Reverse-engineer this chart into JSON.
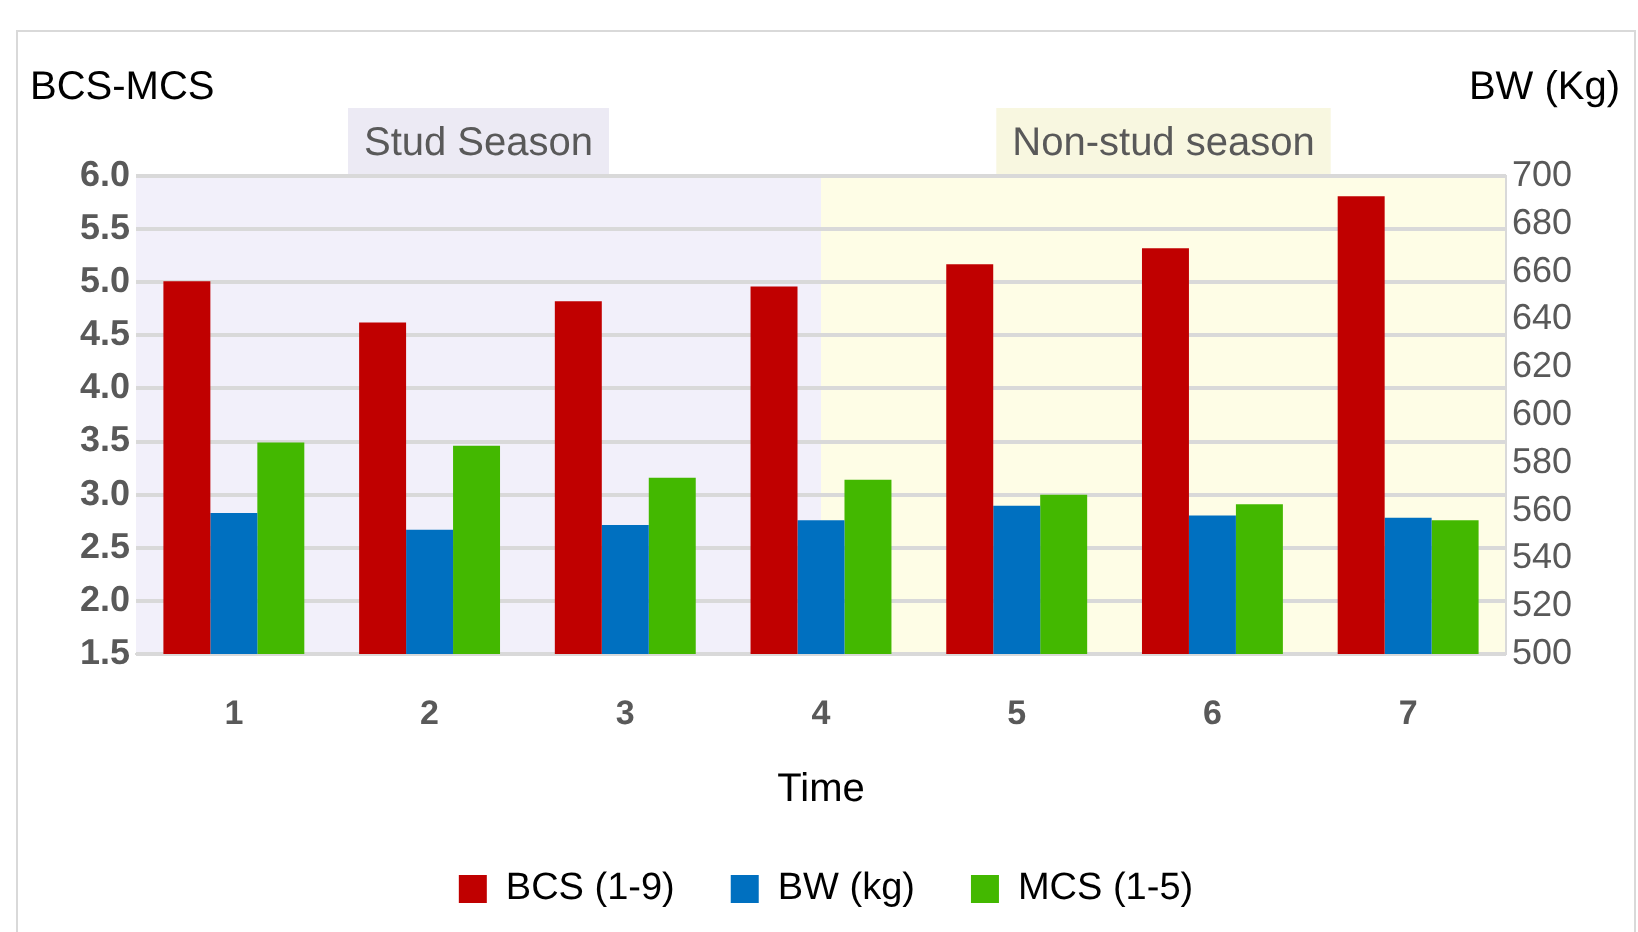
{
  "chart_data": {
    "type": "bar",
    "xlabel": "Time",
    "ylabel": "BCS-MCS",
    "y2label": "BW (Kg)",
    "categories": [
      "1",
      "2",
      "3",
      "4",
      "5",
      "6",
      "7"
    ],
    "series": [
      {
        "name": "BCS (1-9)",
        "color": "#c00000",
        "values": [
          5.01,
          4.62,
          4.82,
          4.96,
          5.17,
          5.32,
          5.81
        ]
      },
      {
        "name": "BW (kg)",
        "color": "#0070c0",
        "axis": "y2",
        "values": [
          559,
          552,
          554,
          556,
          562,
          558,
          557
        ]
      },
      {
        "name": "MCS (1-5)",
        "color": "#43b800",
        "values": [
          3.49,
          3.46,
          3.16,
          3.14,
          3.0,
          2.91,
          2.76
        ]
      }
    ],
    "ylim": [
      1.5,
      6.0
    ],
    "yticks": [
      {
        "value": 1.5,
        "label": "1.5"
      },
      {
        "value": 2,
        "label": "2.0"
      },
      {
        "value": 2.5,
        "label": "2.5"
      },
      {
        "value": 3,
        "label": "3.0"
      },
      {
        "value": 3.5,
        "label": "3.5"
      },
      {
        "value": 4,
        "label": "4.0"
      },
      {
        "value": 4.5,
        "label": "4.5"
      },
      {
        "value": 5,
        "label": "5.0"
      },
      {
        "value": 5.5,
        "label": "5.5"
      },
      {
        "value": 6,
        "label": "6.0"
      }
    ],
    "y2lim": [
      500,
      700
    ],
    "y2ticks": [
      500,
      520,
      540,
      560,
      580,
      600,
      620,
      640,
      660,
      680,
      700
    ],
    "bands": [
      {
        "axis": "x",
        "from": "1",
        "to": "4",
        "label": "Stud Season",
        "color": "#f2f0fa"
      },
      {
        "axis": "x",
        "from": "4",
        "to": "7",
        "label": "Non-stud season",
        "color": "#fefde6"
      }
    ],
    "grid": "y",
    "legend": "bottom"
  }
}
